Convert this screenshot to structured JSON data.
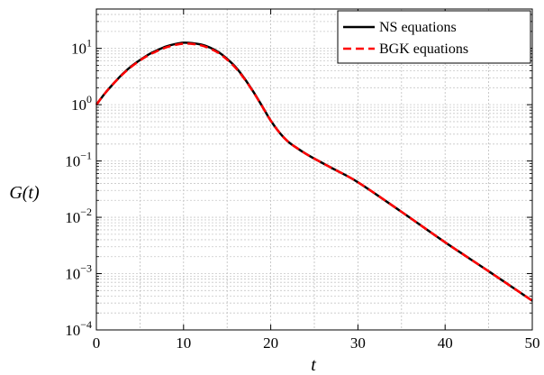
{
  "chart_data": {
    "type": "line",
    "title": "",
    "xlabel": "t",
    "ylabel": "G(t)",
    "xlim": [
      0,
      50
    ],
    "ylim": [
      0.0001,
      50
    ],
    "yscale": "log",
    "grid": true,
    "legend_position": "top-right",
    "x_ticks": [
      0,
      10,
      20,
      30,
      40,
      50
    ],
    "x_tick_labels": [
      "0",
      "10",
      "20",
      "30",
      "40",
      "50"
    ],
    "y_ticks": [
      {
        "value": 10,
        "base": "10",
        "exp": "1"
      },
      {
        "value": 1,
        "base": "10",
        "exp": "0"
      },
      {
        "value": 0.1,
        "base": "10",
        "exp": "−1"
      },
      {
        "value": 0.01,
        "base": "10",
        "exp": "−2"
      },
      {
        "value": 0.001,
        "base": "10",
        "exp": "−3"
      },
      {
        "value": 0.0001,
        "base": "10",
        "exp": "−4"
      }
    ],
    "series": [
      {
        "name": "NS equations",
        "color": "#000000",
        "style": "solid",
        "x": [
          0,
          1,
          2,
          3,
          4,
          5,
          6,
          7,
          8,
          9,
          10,
          11,
          12,
          13,
          14,
          15,
          16,
          17,
          18,
          19,
          20,
          21,
          22,
          23,
          24,
          25,
          27,
          30,
          35,
          40,
          45,
          50
        ],
        "y": [
          1.0,
          1.6,
          2.4,
          3.5,
          4.8,
          6.2,
          7.8,
          9.3,
          10.8,
          11.9,
          12.6,
          12.4,
          11.7,
          10.4,
          8.6,
          6.5,
          4.6,
          2.9,
          1.7,
          0.95,
          0.52,
          0.32,
          0.22,
          0.17,
          0.135,
          0.11,
          0.075,
          0.042,
          0.0125,
          0.0036,
          0.0011,
          0.00033
        ]
      },
      {
        "name": "BGK equations",
        "color": "#ff0000",
        "style": "dashed",
        "x": [
          0,
          1,
          2,
          3,
          4,
          5,
          6,
          7,
          8,
          9,
          10,
          11,
          12,
          13,
          14,
          15,
          16,
          17,
          18,
          19,
          20,
          21,
          22,
          23,
          24,
          25,
          27,
          30,
          35,
          40,
          45,
          50
        ],
        "y": [
          1.0,
          1.6,
          2.4,
          3.45,
          4.7,
          6.1,
          7.6,
          9.0,
          10.4,
          11.5,
          12.1,
          12.0,
          11.3,
          10.0,
          8.3,
          6.3,
          4.45,
          2.85,
          1.68,
          0.94,
          0.52,
          0.32,
          0.22,
          0.17,
          0.135,
          0.11,
          0.075,
          0.042,
          0.0125,
          0.0036,
          0.0011,
          0.00033
        ]
      }
    ]
  }
}
